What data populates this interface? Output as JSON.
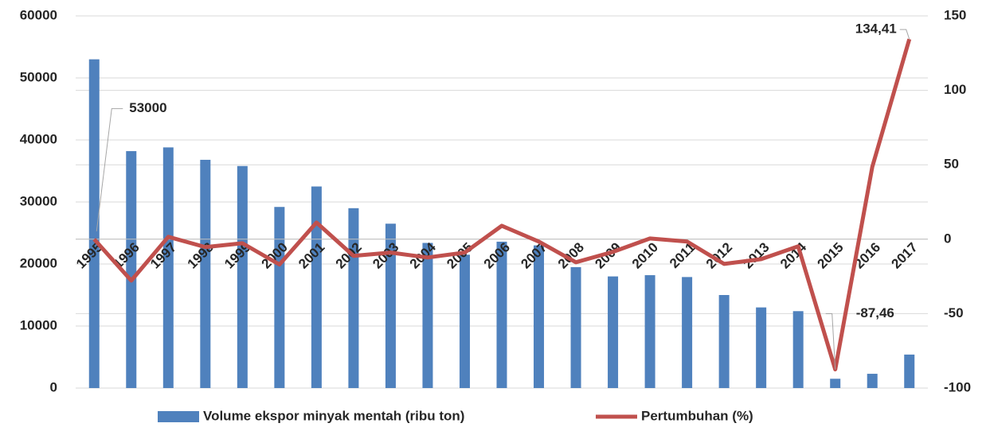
{
  "chart_data": {
    "type": "bar_line",
    "categories": [
      "1995",
      "1996",
      "1997",
      "1998",
      "1999",
      "2000",
      "2001",
      "2002",
      "2003",
      "2004",
      "2005",
      "2006",
      "2007",
      "2008",
      "2009",
      "2010",
      "2011",
      "2012",
      "2013",
      "2014",
      "2015",
      "2016",
      "2017"
    ],
    "series": [
      {
        "name": "Volume ekspor minyak  mentah (ribu ton)",
        "type": "bar",
        "color": "#4f81bd",
        "values": [
          53000,
          38200,
          38800,
          36800,
          35800,
          29200,
          32500,
          29000,
          26500,
          23400,
          21500,
          23600,
          23000,
          19500,
          18000,
          18200,
          17900,
          15000,
          13000,
          12400,
          1500,
          2300,
          5400
        ]
      },
      {
        "name": "Pertumbuhan (%)",
        "type": "line",
        "axis": "y2",
        "color": "#c0504d",
        "values": [
          0,
          -27.8,
          1.6,
          -5.3,
          -2.7,
          -17,
          11.2,
          -11.2,
          -9,
          -12.3,
          -9,
          9,
          -1.6,
          -15.5,
          -8.5,
          0.5,
          -1.6,
          -16.6,
          -13.4,
          -4.8,
          -87.46,
          48.6,
          134.41
        ],
        "value_labels": [
          null,
          null,
          null,
          null,
          null,
          null,
          null,
          null,
          null,
          null,
          null,
          null,
          null,
          null,
          null,
          null,
          null,
          null,
          null,
          null,
          "-87,46",
          null,
          "134,41"
        ]
      }
    ],
    "ylim": [
      0,
      60000
    ],
    "yticks": [
      0,
      10000,
      20000,
      30000,
      40000,
      50000,
      60000
    ],
    "y2lim": [
      -100,
      150
    ],
    "y2ticks": [
      -100,
      -50,
      0,
      50,
      100,
      150
    ],
    "grid": true,
    "legend": "bottom"
  }
}
